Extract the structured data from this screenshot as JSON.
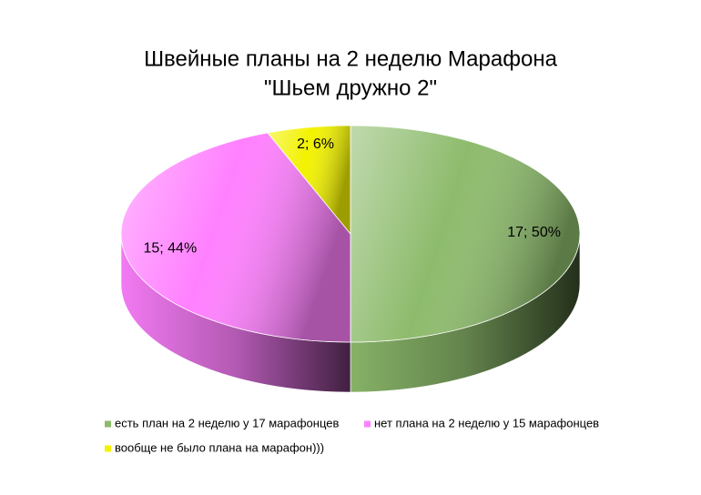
{
  "chart_data": {
    "type": "pie3d",
    "title": [
      "Швейные планы на 2 неделю Марафона",
      "\"Шьем дружно 2\""
    ],
    "categories": [
      "есть план на 2 неделю у 17 марафонцев",
      "нет плана на 2 неделю у 15 марафонцев",
      "вообще не было плана на марафон)))"
    ],
    "values": [
      17,
      15,
      2
    ],
    "value_labels": [
      "17; 50%",
      "15; 44%",
      "2; 6%"
    ],
    "colors": [
      "#8dbb6c",
      "#ff80ff",
      "#f2f200"
    ],
    "legend": "bottom"
  }
}
